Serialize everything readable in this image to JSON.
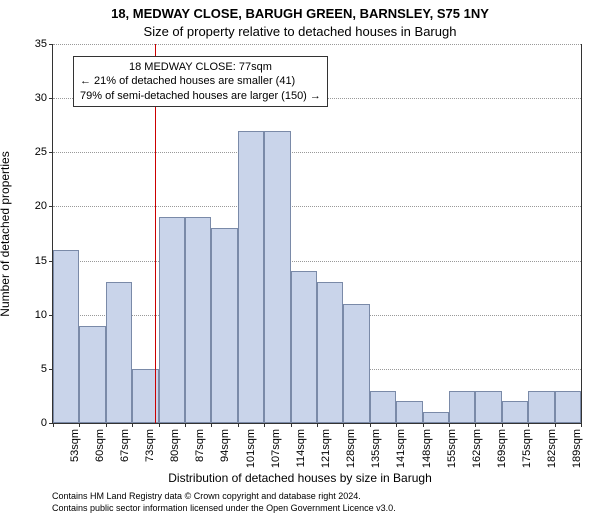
{
  "title_main": "18, MEDWAY CLOSE, BARUGH GREEN, BARNSLEY, S75 1NY",
  "title_sub": "Size of property relative to detached houses in Barugh",
  "ylabel": "Number of detached properties",
  "xlabel": "Distribution of detached houses by size in Barugh",
  "chart": {
    "type": "histogram",
    "ylim": [
      0,
      35
    ],
    "ytick_step": 5,
    "grid_color": "#999999",
    "bar_fill": "#c9d4ea",
    "bar_stroke": "#7a8aa8",
    "background": "#ffffff",
    "axis_color": "#333333",
    "bin_start": 50,
    "bin_width": 7,
    "bins": 20,
    "x_tick_labels": [
      "53sqm",
      "60sqm",
      "67sqm",
      "73sqm",
      "80sqm",
      "87sqm",
      "94sqm",
      "101sqm",
      "107sqm",
      "114sqm",
      "121sqm",
      "128sqm",
      "135sqm",
      "141sqm",
      "148sqm",
      "155sqm",
      "162sqm",
      "169sqm",
      "175sqm",
      "182sqm",
      "189sqm"
    ],
    "values": [
      16,
      9,
      13,
      5,
      19,
      19,
      18,
      27,
      27,
      14,
      13,
      11,
      3,
      2,
      1,
      3,
      3,
      2,
      3,
      3
    ],
    "reference_line": {
      "x_value": 77,
      "color": "#cc0000"
    },
    "annotation": {
      "line1": "18 MEDWAY CLOSE: 77sqm",
      "line2": "← 21% of detached houses are smaller (41)",
      "line3": "79% of semi-detached houses are larger (150) →"
    },
    "title_fontsize": 13,
    "label_fontsize": 12,
    "tick_fontsize": 11
  },
  "attribution": {
    "line1": "Contains HM Land Registry data © Crown copyright and database right 2024.",
    "line2": "Contains public sector information licensed under the Open Government Licence v3.0."
  }
}
